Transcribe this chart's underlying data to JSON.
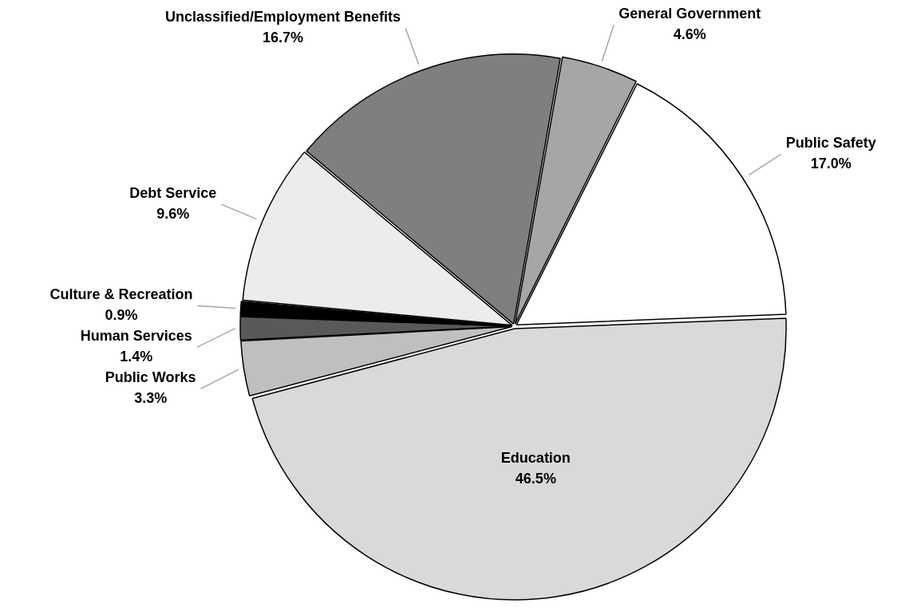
{
  "chart_data": {
    "type": "pie",
    "categories": [
      "General Government",
      "Public Safety",
      "Education",
      "Public Works",
      "Human Services",
      "Culture & Recreation",
      "Debt Service",
      "Unclassified/Employment Benefits"
    ],
    "values": [
      4.6,
      17.0,
      46.5,
      3.3,
      1.4,
      0.9,
      9.6,
      16.7
    ],
    "value_labels": [
      "4.6%",
      "17.0%",
      "46.5%",
      "3.3%",
      "1.4%",
      "0.9%",
      "9.6%",
      "16.7%"
    ],
    "colors": [
      "#a6a6a6",
      "#ffffff",
      "#d9d9d9",
      "#bfbfbf",
      "#595959",
      "#000000",
      "#ececec",
      "#7f7f7f"
    ],
    "legend": false
  }
}
